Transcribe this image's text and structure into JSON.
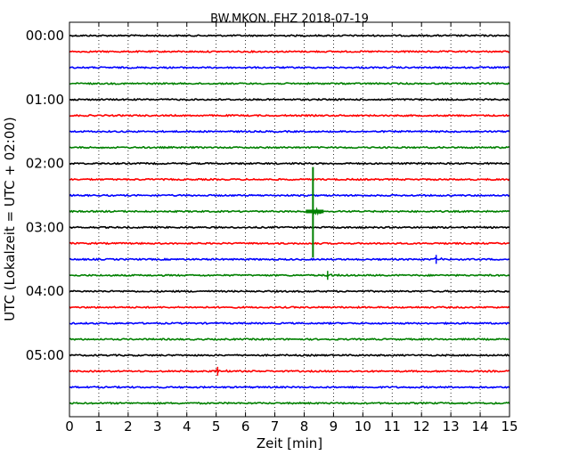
{
  "chart_data": {
    "type": "line",
    "title": "BW.MKON..EHZ 2018-07-19",
    "xlabel": "Zeit  [min]",
    "ylabel": "UTC (Lokalzeit = UTC + 02:00)",
    "xlim": [
      0,
      15
    ],
    "x_ticks": [
      "0",
      "1",
      "2",
      "3",
      "4",
      "5",
      "6",
      "7",
      "8",
      "9",
      "10",
      "11",
      "12",
      "13",
      "14",
      "15"
    ],
    "y_ticks": [
      "00:00",
      "01:00",
      "02:00",
      "03:00",
      "04:00",
      "05:00"
    ],
    "grid": "vertical dotted",
    "colors": [
      "#000000",
      "#ff0000",
      "#0000ff",
      "#008000"
    ],
    "trace_interval_min": 15,
    "trace_start_times": [
      "00:00",
      "00:15",
      "00:30",
      "00:45",
      "01:00",
      "01:15",
      "01:30",
      "01:45",
      "02:00",
      "02:15",
      "02:30",
      "02:45",
      "03:00",
      "03:15",
      "03:30",
      "03:45",
      "04:00",
      "04:15",
      "04:30",
      "04:45",
      "05:00",
      "05:15",
      "05:30",
      "05:45"
    ],
    "events": [
      {
        "trace_start": "02:45",
        "minute": 8.3,
        "description": "earthquake signal, large amplitude spanning several traces"
      },
      {
        "trace_start": "05:15",
        "minute": 5.05,
        "description": "small spike"
      },
      {
        "trace_start": "03:30",
        "minute": 12.5,
        "description": "small spike"
      },
      {
        "trace_start": "03:45",
        "minute": 8.8,
        "description": "minor wiggle"
      }
    ]
  }
}
